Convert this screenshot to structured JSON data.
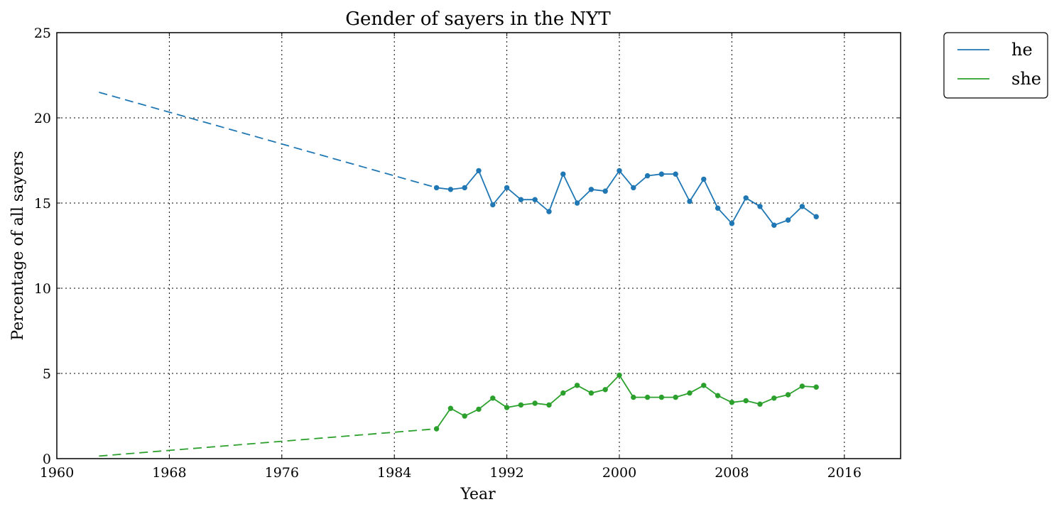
{
  "chart_data": {
    "type": "line",
    "title": "Gender of sayers in the NYT",
    "xlabel": "Year",
    "ylabel": "Percentage of all sayers",
    "xlim": [
      1960,
      2020
    ],
    "ylim": [
      0,
      25
    ],
    "xticks": [
      "1960",
      "1968",
      "1976",
      "1984",
      "1992",
      "2000",
      "2008",
      "2016"
    ],
    "yticks": [
      "0",
      "5",
      "10",
      "15",
      "20",
      "25"
    ],
    "grid": true,
    "legend": "outside-top-right",
    "series": [
      {
        "name": "he",
        "color": "#1f77b4",
        "trend": {
          "x": [
            1963,
            1987
          ],
          "y": [
            21.5,
            15.9
          ]
        },
        "x": [
          1987,
          1988,
          1989,
          1990,
          1991,
          1992,
          1993,
          1994,
          1995,
          1996,
          1997,
          1998,
          1999,
          2000,
          2001,
          2002,
          2003,
          2004,
          2005,
          2006,
          2007,
          2008,
          2009,
          2010,
          2011,
          2012,
          2013,
          2014
        ],
        "y": [
          15.9,
          15.8,
          15.9,
          16.9,
          14.9,
          15.9,
          15.2,
          15.2,
          14.5,
          16.7,
          15.0,
          15.8,
          15.7,
          16.9,
          15.9,
          16.6,
          16.7,
          16.7,
          15.1,
          16.4,
          14.7,
          13.8,
          15.3,
          14.8,
          13.7,
          14.0,
          14.8,
          14.2
        ]
      },
      {
        "name": "she",
        "color": "#2ca02c",
        "trend": {
          "x": [
            1963,
            1987
          ],
          "y": [
            0.15,
            1.75
          ]
        },
        "x": [
          1987,
          1988,
          1989,
          1990,
          1991,
          1992,
          1993,
          1994,
          1995,
          1996,
          1997,
          1998,
          1999,
          2000,
          2001,
          2002,
          2003,
          2004,
          2005,
          2006,
          2007,
          2008,
          2009,
          2010,
          2011,
          2012,
          2013,
          2014
        ],
        "y": [
          1.75,
          2.95,
          2.5,
          2.9,
          3.55,
          3.0,
          3.15,
          3.25,
          3.15,
          3.85,
          4.3,
          3.85,
          4.05,
          4.9,
          3.6,
          3.6,
          3.6,
          3.6,
          3.85,
          4.3,
          3.7,
          3.3,
          3.4,
          3.2,
          3.55,
          3.75,
          4.25,
          4.2
        ]
      }
    ]
  }
}
